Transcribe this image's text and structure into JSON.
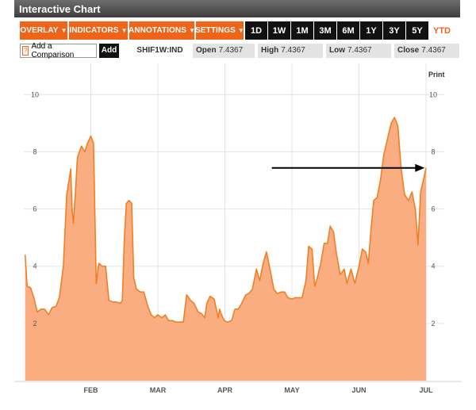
{
  "window": {
    "title": "Interactive Chart"
  },
  "toolbar": {
    "menus": [
      {
        "label": "OVERLAY",
        "width": 60
      },
      {
        "label": "INDICATORS",
        "width": 74
      },
      {
        "label": "ANNOTATIONS",
        "width": 82
      },
      {
        "label": "SETTINGS",
        "width": 60
      }
    ],
    "ranges": [
      "1D",
      "1W",
      "1M",
      "3M",
      "6M",
      "1Y",
      "3Y",
      "5Y",
      "YTD"
    ],
    "active_range": "YTD"
  },
  "infobar": {
    "help_glyph": "?",
    "compare_label": "Add a Comparison",
    "add_label": "Add",
    "ticker": "SHIF1W:IND",
    "open": {
      "label": "Open",
      "value": "7.4367"
    },
    "high": {
      "label": "High",
      "value": "7.4367"
    },
    "low": {
      "label": "Low",
      "value": "7.4367"
    },
    "close": {
      "label": "Close",
      "value": "7.4367"
    }
  },
  "print_label": "Print",
  "colors": {
    "accent": "#ef6418",
    "area_fill": "#fbad82",
    "line": "#f07f24",
    "arrow": "#000000"
  },
  "chart_data": {
    "type": "area",
    "ylim": [
      0,
      11.2
    ],
    "y_ticks": [
      2,
      4,
      6,
      8,
      10
    ],
    "x_range": [
      0,
      6.3
    ],
    "x_ticks": [
      {
        "label": "FEB",
        "x": 1
      },
      {
        "label": "MAR",
        "x": 2
      },
      {
        "label": "APR",
        "x": 3
      },
      {
        "label": "MAY",
        "x": 4
      },
      {
        "label": "JUN",
        "x": 5
      },
      {
        "label": "JUL",
        "x": 6
      }
    ],
    "points": [
      [
        0.02,
        4.4
      ],
      [
        0.05,
        3.3
      ],
      [
        0.1,
        3.25
      ],
      [
        0.15,
        2.9
      ],
      [
        0.2,
        2.4
      ],
      [
        0.26,
        2.5
      ],
      [
        0.31,
        2.5
      ],
      [
        0.37,
        2.3
      ],
      [
        0.42,
        2.55
      ],
      [
        0.48,
        2.6
      ],
      [
        0.53,
        2.9
      ],
      [
        0.59,
        4.0
      ],
      [
        0.64,
        6.5
      ],
      [
        0.7,
        7.4
      ],
      [
        0.72,
        6.0
      ],
      [
        0.74,
        5.5
      ],
      [
        0.77,
        6.6
      ],
      [
        0.8,
        7.8
      ],
      [
        0.86,
        8.2
      ],
      [
        0.91,
        8.0
      ],
      [
        0.95,
        8.3
      ],
      [
        1.0,
        8.55
      ],
      [
        1.04,
        8.3
      ],
      [
        1.08,
        3.4
      ],
      [
        1.12,
        4.1
      ],
      [
        1.17,
        4.0
      ],
      [
        1.22,
        4.0
      ],
      [
        1.27,
        2.8
      ],
      [
        1.33,
        2.75
      ],
      [
        1.38,
        2.75
      ],
      [
        1.44,
        2.7
      ],
      [
        1.47,
        2.8
      ],
      [
        1.5,
        5.0
      ],
      [
        1.53,
        6.2
      ],
      [
        1.57,
        6.3
      ],
      [
        1.61,
        6.2
      ],
      [
        1.64,
        3.6
      ],
      [
        1.68,
        3.2
      ],
      [
        1.74,
        3.1
      ],
      [
        1.79,
        3.1
      ],
      [
        1.85,
        2.6
      ],
      [
        1.9,
        2.3
      ],
      [
        1.95,
        2.2
      ],
      [
        2.0,
        2.3
      ],
      [
        2.06,
        2.2
      ],
      [
        2.11,
        2.3
      ],
      [
        2.16,
        2.1
      ],
      [
        2.22,
        2.1
      ],
      [
        2.27,
        2.05
      ],
      [
        2.32,
        2.05
      ],
      [
        2.38,
        2.05
      ],
      [
        2.43,
        3.0
      ],
      [
        2.49,
        2.8
      ],
      [
        2.54,
        2.7
      ],
      [
        2.6,
        2.4
      ],
      [
        2.65,
        2.35
      ],
      [
        2.7,
        2.2
      ],
      [
        2.73,
        2.7
      ],
      [
        2.78,
        2.95
      ],
      [
        2.84,
        2.85
      ],
      [
        2.9,
        2.2
      ],
      [
        2.92,
        2.5
      ],
      [
        2.95,
        2.3
      ],
      [
        2.99,
        2.1
      ],
      [
        3.04,
        2.05
      ],
      [
        3.1,
        2.1
      ],
      [
        3.15,
        2.5
      ],
      [
        3.2,
        2.5
      ],
      [
        3.25,
        2.7
      ],
      [
        3.31,
        3.0
      ],
      [
        3.36,
        3.05
      ],
      [
        3.41,
        3.2
      ],
      [
        3.47,
        3.9
      ],
      [
        3.52,
        3.5
      ],
      [
        3.57,
        4.1
      ],
      [
        3.62,
        4.5
      ],
      [
        3.68,
        3.8
      ],
      [
        3.73,
        3.2
      ],
      [
        3.78,
        3.05
      ],
      [
        3.84,
        3.1
      ],
      [
        3.89,
        3.1
      ],
      [
        3.94,
        2.9
      ],
      [
        4.0,
        2.85
      ],
      [
        4.05,
        2.9
      ],
      [
        4.1,
        2.9
      ],
      [
        4.15,
        2.9
      ],
      [
        4.21,
        3.5
      ],
      [
        4.25,
        4.7
      ],
      [
        4.3,
        4.6
      ],
      [
        4.34,
        3.3
      ],
      [
        4.38,
        3.6
      ],
      [
        4.43,
        4.1
      ],
      [
        4.48,
        4.8
      ],
      [
        4.53,
        4.8
      ],
      [
        4.57,
        5.4
      ],
      [
        4.62,
        5.2
      ],
      [
        4.66,
        4.5
      ],
      [
        4.72,
        3.7
      ],
      [
        4.78,
        3.9
      ],
      [
        4.82,
        3.4
      ],
      [
        4.88,
        3.9
      ],
      [
        4.94,
        3.4
      ],
      [
        5.0,
        4.0
      ],
      [
        5.05,
        4.6
      ],
      [
        5.1,
        4.5
      ],
      [
        5.14,
        4.1
      ],
      [
        5.18,
        5.3
      ],
      [
        5.22,
        6.3
      ],
      [
        5.27,
        6.4
      ],
      [
        5.32,
        7.0
      ],
      [
        5.37,
        7.9
      ],
      [
        5.42,
        8.4
      ],
      [
        5.48,
        9.0
      ],
      [
        5.53,
        9.2
      ],
      [
        5.58,
        8.9
      ],
      [
        5.63,
        7.4
      ],
      [
        5.68,
        6.5
      ],
      [
        5.74,
        6.3
      ],
      [
        5.79,
        6.6
      ],
      [
        5.84,
        6.0
      ],
      [
        5.88,
        4.75
      ],
      [
        5.92,
        6.6
      ],
      [
        5.96,
        7.0
      ],
      [
        6.0,
        7.4367
      ]
    ],
    "annotations": [
      {
        "type": "arrow",
        "from": [
          3.7,
          7.4367
        ],
        "to": [
          5.98,
          7.4367
        ]
      }
    ]
  }
}
